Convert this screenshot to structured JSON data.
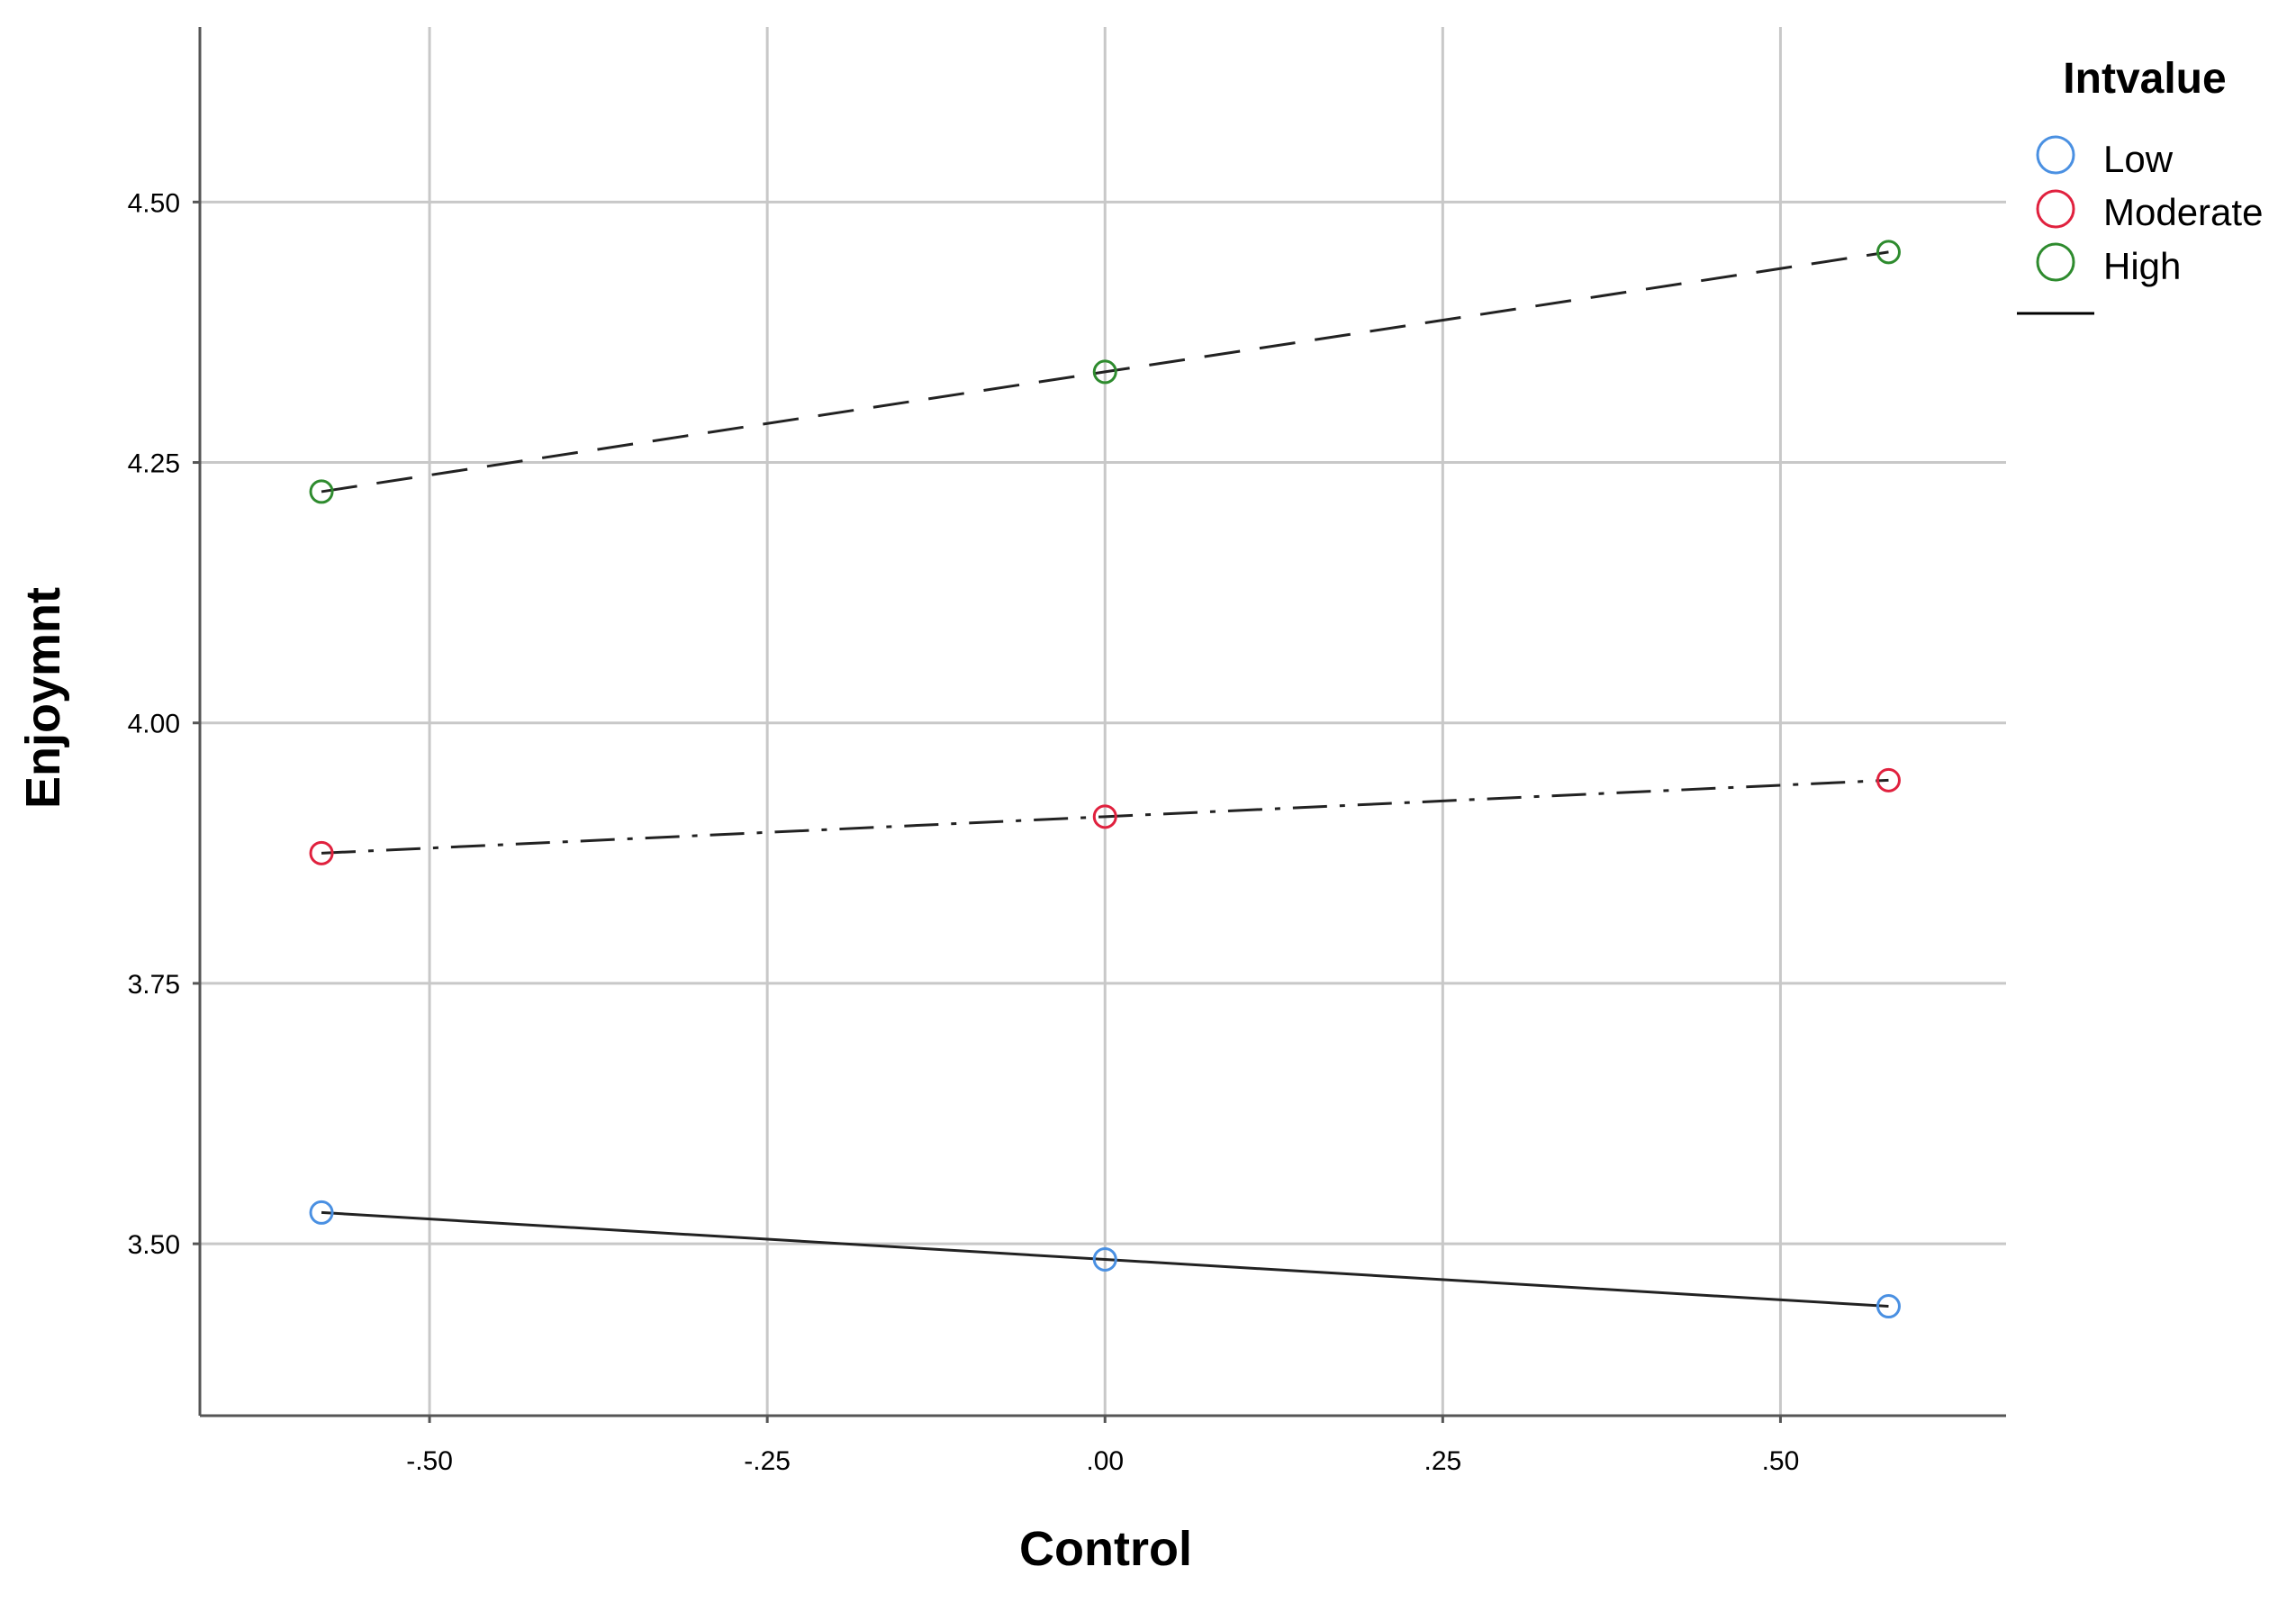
{
  "chart_data": {
    "type": "line",
    "title": "",
    "xlabel": "Control",
    "ylabel": "Enjoymnt",
    "x": [
      -0.58,
      0.0,
      0.58
    ],
    "xlim": [
      -0.67,
      0.667
    ],
    "ylim": [
      3.335,
      4.668
    ],
    "x_ticks": [
      -0.5,
      -0.25,
      0.0,
      0.25,
      0.5
    ],
    "x_tick_labels": [
      "-.50",
      "-.25",
      ".00",
      ".25",
      ".50"
    ],
    "y_ticks": [
      3.5,
      3.75,
      4.0,
      4.25,
      4.5
    ],
    "y_tick_labels": [
      "3.50",
      "3.75",
      "4.00",
      "4.25",
      "4.50"
    ],
    "grid": true,
    "legend": {
      "title": "Intvalue",
      "placement": "top-right",
      "items": [
        {
          "label": "Low",
          "color": "#4a90e2"
        },
        {
          "label": "Moderate",
          "color": "#e0213e"
        },
        {
          "label": "High",
          "color": "#2e8b2e"
        }
      ]
    },
    "series": [
      {
        "name": "Low",
        "marker_color": "#4a90e2",
        "line_style": "solid",
        "values": [
          3.53,
          3.485,
          3.44
        ]
      },
      {
        "name": "Moderate",
        "marker_color": "#e0213e",
        "line_style": "dashdot",
        "values": [
          3.875,
          3.91,
          3.945
        ]
      },
      {
        "name": "High",
        "marker_color": "#2e8b2e",
        "line_style": "dashed",
        "values": [
          4.222,
          4.337,
          4.452
        ]
      }
    ]
  }
}
